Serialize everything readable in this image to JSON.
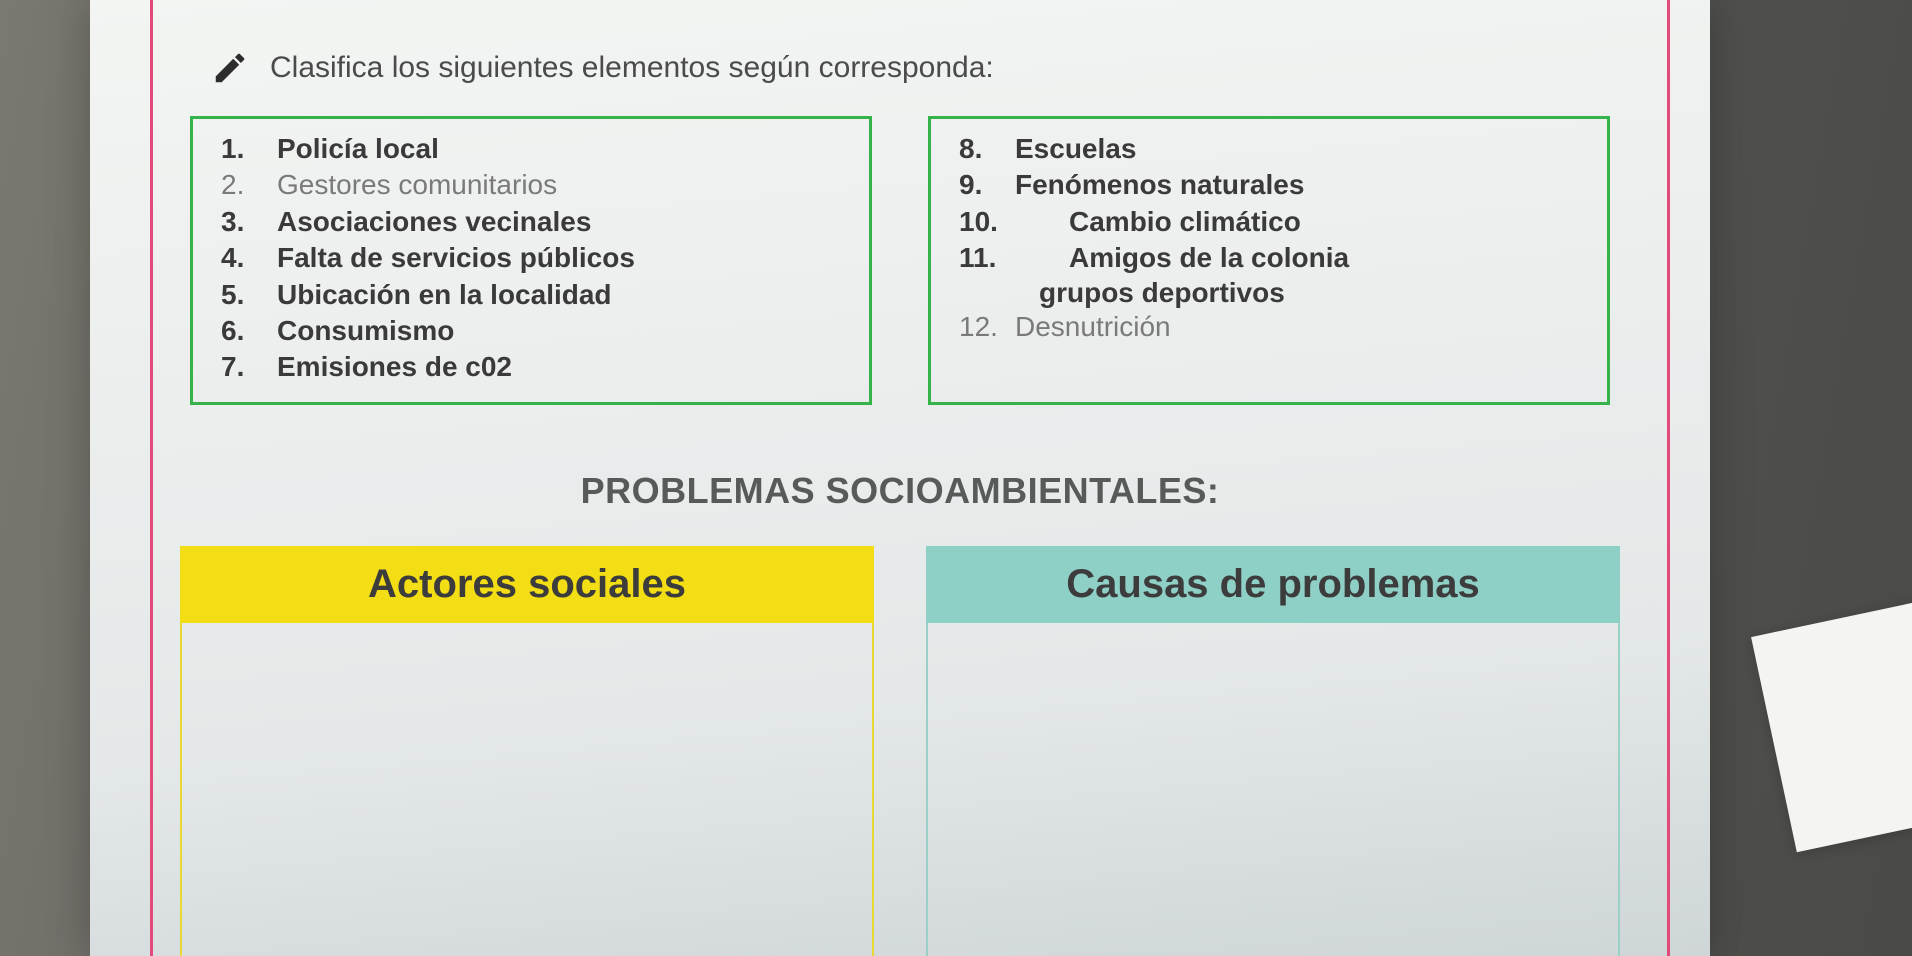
{
  "colors": {
    "pink_border": "#e24a7a",
    "green_border": "#35b24a",
    "yellow_header": "#f3dd14",
    "yellow_border": "#e9d733",
    "teal_header": "#8fd0c6",
    "teal_border": "#9ccfc8",
    "text_dark": "#3a3a3a",
    "text_muted": "#7a7a7a",
    "title_gray": "#585a5a"
  },
  "instruction": "Clasifica los siguientes elementos según corresponda:",
  "items_left": [
    {
      "n": "1.",
      "text": "Policía local",
      "bold": true
    },
    {
      "n": "2.",
      "text": "Gestores comunitarios",
      "bold": false
    },
    {
      "n": "3.",
      "text": "Asociaciones vecinales",
      "bold": true
    },
    {
      "n": "4.",
      "text": "Falta de servicios públicos",
      "bold": true
    },
    {
      "n": "5.",
      "text": "Ubicación en la localidad",
      "bold": true
    },
    {
      "n": "6.",
      "text": "Consumismo",
      "bold": true
    },
    {
      "n": "7.",
      "text": "Emisiones de c02",
      "bold": true
    }
  ],
  "items_right": [
    {
      "n": "8.",
      "text": "Escuelas",
      "bold": true,
      "indent": false
    },
    {
      "n": "9.",
      "text": "Fenómenos naturales",
      "bold": true,
      "indent": false
    },
    {
      "n": "10.",
      "text": "Cambio climático",
      "bold": true,
      "indent": true
    },
    {
      "n": "11.",
      "text": "Amigos de la colonia",
      "bold": true,
      "indent": true
    }
  ],
  "items_right_subline": "grupos deportivos",
  "items_right_tail": {
    "n": "12.",
    "text": "Desnutrición",
    "bold": false
  },
  "section_title": "PROBLEMAS SOCIOAMBIENTALES:",
  "categories": {
    "left": "Actores sociales",
    "right": "Causas de problemas"
  }
}
